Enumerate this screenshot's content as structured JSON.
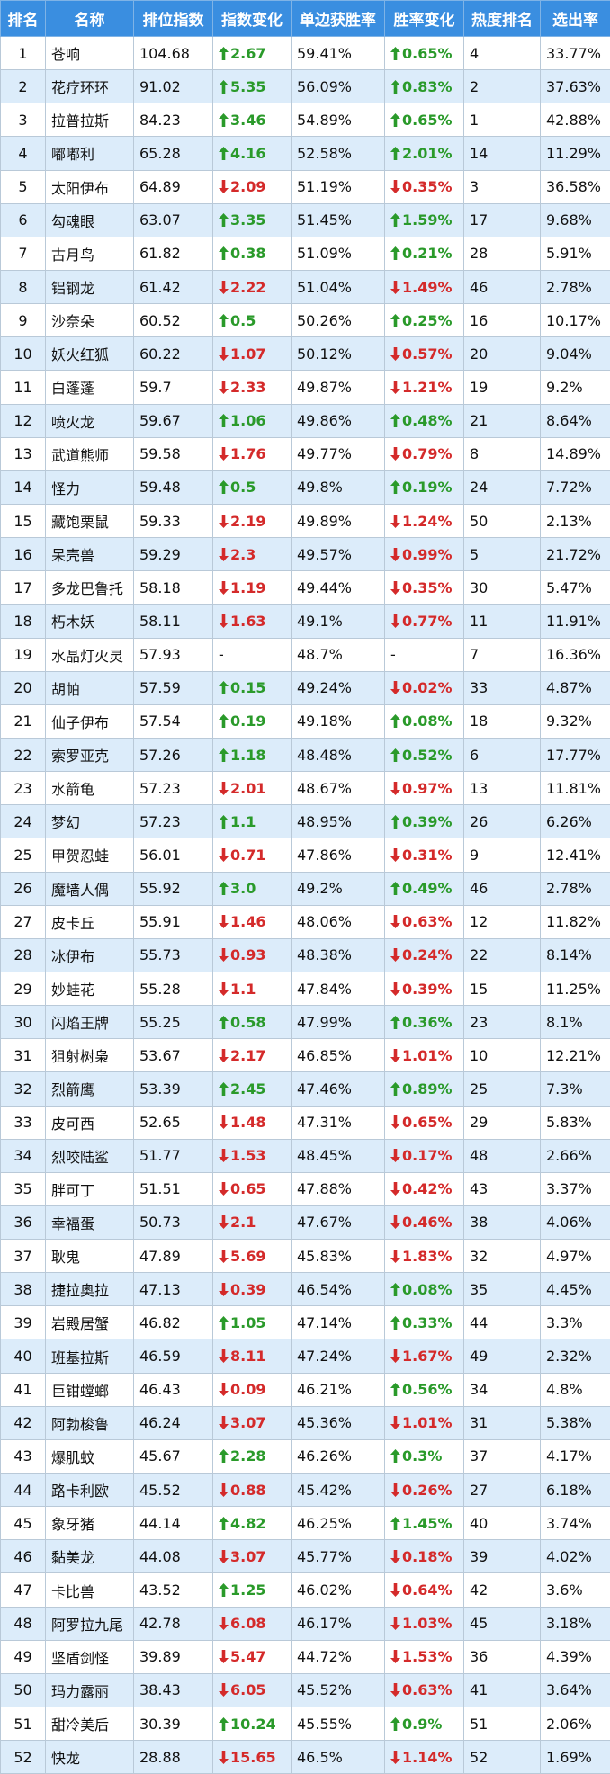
{
  "table": {
    "columns": [
      "排名",
      "名称",
      "排位指数",
      "指数变化",
      "单边获胜率",
      "胜率变化",
      "热度排名",
      "选出率"
    ],
    "rows": [
      [
        "1",
        "苍响",
        "104.68",
        {
          "direction": "up",
          "text": "2.67"
        },
        "59.41%",
        {
          "direction": "up",
          "text": "0.65%"
        },
        "4",
        "33.77%"
      ],
      [
        "2",
        "花疗环环",
        "91.02",
        {
          "direction": "up",
          "text": "5.35"
        },
        "56.09%",
        {
          "direction": "up",
          "text": "0.83%"
        },
        "2",
        "37.63%"
      ],
      [
        "3",
        "拉普拉斯",
        "84.23",
        {
          "direction": "up",
          "text": "3.46"
        },
        "54.89%",
        {
          "direction": "up",
          "text": "0.65%"
        },
        "1",
        "42.88%"
      ],
      [
        "4",
        "嘟嘟利",
        "65.28",
        {
          "direction": "up",
          "text": "4.16"
        },
        "52.58%",
        {
          "direction": "up",
          "text": "2.01%"
        },
        "14",
        "11.29%"
      ],
      [
        "5",
        "太阳伊布",
        "64.89",
        {
          "direction": "down",
          "text": "2.09"
        },
        "51.19%",
        {
          "direction": "down",
          "text": "0.35%"
        },
        "3",
        "36.58%"
      ],
      [
        "6",
        "勾魂眼",
        "63.07",
        {
          "direction": "up",
          "text": "3.35"
        },
        "51.45%",
        {
          "direction": "up",
          "text": "1.59%"
        },
        "17",
        "9.68%"
      ],
      [
        "7",
        "古月鸟",
        "61.82",
        {
          "direction": "up",
          "text": "0.38"
        },
        "51.09%",
        {
          "direction": "up",
          "text": "0.21%"
        },
        "28",
        "5.91%"
      ],
      [
        "8",
        "铝钢龙",
        "61.42",
        {
          "direction": "down",
          "text": "2.22"
        },
        "51.04%",
        {
          "direction": "down",
          "text": "1.49%"
        },
        "46",
        "2.78%"
      ],
      [
        "9",
        "沙奈朵",
        "60.52",
        {
          "direction": "up",
          "text": "0.5"
        },
        "50.26%",
        {
          "direction": "up",
          "text": "0.25%"
        },
        "16",
        "10.17%"
      ],
      [
        "10",
        "妖火红狐",
        "60.22",
        {
          "direction": "down",
          "text": "1.07"
        },
        "50.12%",
        {
          "direction": "down",
          "text": "0.57%"
        },
        "20",
        "9.04%"
      ],
      [
        "11",
        "白蓬蓬",
        "59.7",
        {
          "direction": "down",
          "text": "2.33"
        },
        "49.87%",
        {
          "direction": "down",
          "text": "1.21%"
        },
        "19",
        "9.2%"
      ],
      [
        "12",
        "喷火龙",
        "59.67",
        {
          "direction": "up",
          "text": "1.06"
        },
        "49.86%",
        {
          "direction": "up",
          "text": "0.48%"
        },
        "21",
        "8.64%"
      ],
      [
        "13",
        "武道熊师",
        "59.58",
        {
          "direction": "down",
          "text": "1.76"
        },
        "49.77%",
        {
          "direction": "down",
          "text": "0.79%"
        },
        "8",
        "14.89%"
      ],
      [
        "14",
        "怪力",
        "59.48",
        {
          "direction": "up",
          "text": "0.5"
        },
        "49.8%",
        {
          "direction": "up",
          "text": "0.19%"
        },
        "24",
        "7.72%"
      ],
      [
        "15",
        "藏饱栗鼠",
        "59.33",
        {
          "direction": "down",
          "text": "2.19"
        },
        "49.89%",
        {
          "direction": "down",
          "text": "1.24%"
        },
        "50",
        "2.13%"
      ],
      [
        "16",
        "呆壳兽",
        "59.29",
        {
          "direction": "down",
          "text": "2.3"
        },
        "49.57%",
        {
          "direction": "down",
          "text": "0.99%"
        },
        "5",
        "21.72%"
      ],
      [
        "17",
        "多龙巴鲁托",
        "58.18",
        {
          "direction": "down",
          "text": "1.19"
        },
        "49.44%",
        {
          "direction": "down",
          "text": "0.35%"
        },
        "30",
        "5.47%"
      ],
      [
        "18",
        "朽木妖",
        "58.11",
        {
          "direction": "down",
          "text": "1.63"
        },
        "49.1%",
        {
          "direction": "down",
          "text": "0.77%"
        },
        "11",
        "11.91%"
      ],
      [
        "19",
        "水晶灯火灵",
        "57.93",
        "-",
        "48.7%",
        "-",
        "7",
        "16.36%"
      ],
      [
        "20",
        "胡帕",
        "57.59",
        {
          "direction": "up",
          "text": "0.15"
        },
        "49.24%",
        {
          "direction": "down",
          "text": "0.02%"
        },
        "33",
        "4.87%"
      ],
      [
        "21",
        "仙子伊布",
        "57.54",
        {
          "direction": "up",
          "text": "0.19"
        },
        "49.18%",
        {
          "direction": "up",
          "text": "0.08%"
        },
        "18",
        "9.32%"
      ],
      [
        "22",
        "索罗亚克",
        "57.26",
        {
          "direction": "up",
          "text": "1.18"
        },
        "48.48%",
        {
          "direction": "up",
          "text": "0.52%"
        },
        "6",
        "17.77%"
      ],
      [
        "23",
        "水箭龟",
        "57.23",
        {
          "direction": "down",
          "text": "2.01"
        },
        "48.67%",
        {
          "direction": "down",
          "text": "0.97%"
        },
        "13",
        "11.81%"
      ],
      [
        "24",
        "梦幻",
        "57.23",
        {
          "direction": "up",
          "text": "1.1"
        },
        "48.95%",
        {
          "direction": "up",
          "text": "0.39%"
        },
        "26",
        "6.26%"
      ],
      [
        "25",
        "甲贺忍蛙",
        "56.01",
        {
          "direction": "down",
          "text": "0.71"
        },
        "47.86%",
        {
          "direction": "down",
          "text": "0.31%"
        },
        "9",
        "12.41%"
      ],
      [
        "26",
        "魔墙人偶",
        "55.92",
        {
          "direction": "up",
          "text": "3.0"
        },
        "49.2%",
        {
          "direction": "up",
          "text": "0.49%"
        },
        "46",
        "2.78%"
      ],
      [
        "27",
        "皮卡丘",
        "55.91",
        {
          "direction": "down",
          "text": "1.46"
        },
        "48.06%",
        {
          "direction": "down",
          "text": "0.63%"
        },
        "12",
        "11.82%"
      ],
      [
        "28",
        "冰伊布",
        "55.73",
        {
          "direction": "down",
          "text": "0.93"
        },
        "48.38%",
        {
          "direction": "down",
          "text": "0.24%"
        },
        "22",
        "8.14%"
      ],
      [
        "29",
        "妙蛙花",
        "55.28",
        {
          "direction": "down",
          "text": "1.1"
        },
        "47.84%",
        {
          "direction": "down",
          "text": "0.39%"
        },
        "15",
        "11.25%"
      ],
      [
        "30",
        "闪焰王牌",
        "55.25",
        {
          "direction": "up",
          "text": "0.58"
        },
        "47.99%",
        {
          "direction": "up",
          "text": "0.36%"
        },
        "23",
        "8.1%"
      ],
      [
        "31",
        "狙射树枭",
        "53.67",
        {
          "direction": "down",
          "text": "2.17"
        },
        "46.85%",
        {
          "direction": "down",
          "text": "1.01%"
        },
        "10",
        "12.21%"
      ],
      [
        "32",
        "烈箭鹰",
        "53.39",
        {
          "direction": "up",
          "text": "2.45"
        },
        "47.46%",
        {
          "direction": "up",
          "text": "0.89%"
        },
        "25",
        "7.3%"
      ],
      [
        "33",
        "皮可西",
        "52.65",
        {
          "direction": "down",
          "text": "1.48"
        },
        "47.31%",
        {
          "direction": "down",
          "text": "0.65%"
        },
        "29",
        "5.83%"
      ],
      [
        "34",
        "烈咬陆鲨",
        "51.77",
        {
          "direction": "down",
          "text": "1.53"
        },
        "48.45%",
        {
          "direction": "down",
          "text": "0.17%"
        },
        "48",
        "2.66%"
      ],
      [
        "35",
        "胖可丁",
        "51.51",
        {
          "direction": "down",
          "text": "0.65"
        },
        "47.88%",
        {
          "direction": "down",
          "text": "0.42%"
        },
        "43",
        "3.37%"
      ],
      [
        "36",
        "幸福蛋",
        "50.73",
        {
          "direction": "down",
          "text": "2.1"
        },
        "47.67%",
        {
          "direction": "down",
          "text": "0.46%"
        },
        "38",
        "4.06%"
      ],
      [
        "37",
        "耿鬼",
        "47.89",
        {
          "direction": "down",
          "text": "5.69"
        },
        "45.83%",
        {
          "direction": "down",
          "text": "1.83%"
        },
        "32",
        "4.97%"
      ],
      [
        "38",
        "捷拉奥拉",
        "47.13",
        {
          "direction": "down",
          "text": "0.39"
        },
        "46.54%",
        {
          "direction": "up",
          "text": "0.08%"
        },
        "35",
        "4.45%"
      ],
      [
        "39",
        "岩殿居蟹",
        "46.82",
        {
          "direction": "up",
          "text": "1.05"
        },
        "47.14%",
        {
          "direction": "up",
          "text": "0.33%"
        },
        "44",
        "3.3%"
      ],
      [
        "40",
        "班基拉斯",
        "46.59",
        {
          "direction": "down",
          "text": "8.11"
        },
        "47.24%",
        {
          "direction": "down",
          "text": "1.67%"
        },
        "49",
        "2.32%"
      ],
      [
        "41",
        "巨钳螳螂",
        "46.43",
        {
          "direction": "down",
          "text": "0.09"
        },
        "46.21%",
        {
          "direction": "up",
          "text": "0.56%"
        },
        "34",
        "4.8%"
      ],
      [
        "42",
        "阿勃梭鲁",
        "46.24",
        {
          "direction": "down",
          "text": "3.07"
        },
        "45.36%",
        {
          "direction": "down",
          "text": "1.01%"
        },
        "31",
        "5.38%"
      ],
      [
        "43",
        "爆肌蚊",
        "45.67",
        {
          "direction": "up",
          "text": "2.28"
        },
        "46.26%",
        {
          "direction": "up",
          "text": "0.3%"
        },
        "37",
        "4.17%"
      ],
      [
        "44",
        "路卡利欧",
        "45.52",
        {
          "direction": "down",
          "text": "0.88"
        },
        "45.42%",
        {
          "direction": "down",
          "text": "0.26%"
        },
        "27",
        "6.18%"
      ],
      [
        "45",
        "象牙猪",
        "44.14",
        {
          "direction": "up",
          "text": "4.82"
        },
        "46.25%",
        {
          "direction": "up",
          "text": "1.45%"
        },
        "40",
        "3.74%"
      ],
      [
        "46",
        "黏美龙",
        "44.08",
        {
          "direction": "down",
          "text": "3.07"
        },
        "45.77%",
        {
          "direction": "down",
          "text": "0.18%"
        },
        "39",
        "4.02%"
      ],
      [
        "47",
        "卡比兽",
        "43.52",
        {
          "direction": "up",
          "text": "1.25"
        },
        "46.02%",
        {
          "direction": "down",
          "text": "0.64%"
        },
        "42",
        "3.6%"
      ],
      [
        "48",
        "阿罗拉九尾",
        "42.78",
        {
          "direction": "down",
          "text": "6.08"
        },
        "46.17%",
        {
          "direction": "down",
          "text": "1.03%"
        },
        "45",
        "3.18%"
      ],
      [
        "49",
        "坚盾剑怪",
        "39.89",
        {
          "direction": "down",
          "text": "5.47"
        },
        "44.72%",
        {
          "direction": "down",
          "text": "1.53%"
        },
        "36",
        "4.39%"
      ],
      [
        "50",
        "玛力露丽",
        "38.43",
        {
          "direction": "down",
          "text": "6.05"
        },
        "45.52%",
        {
          "direction": "down",
          "text": "0.63%"
        },
        "41",
        "3.64%"
      ],
      [
        "51",
        "甜冷美后",
        "30.39",
        {
          "direction": "up",
          "text": "10.24"
        },
        "45.55%",
        {
          "direction": "up",
          "text": "0.9%"
        },
        "51",
        "2.06%"
      ],
      [
        "52",
        "快龙",
        "28.88",
        {
          "direction": "down",
          "text": "15.65"
        },
        "46.5%",
        {
          "direction": "down",
          "text": "1.14%"
        },
        "52",
        "1.69%"
      ]
    ]
  }
}
